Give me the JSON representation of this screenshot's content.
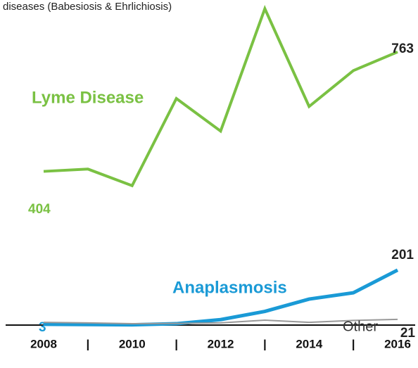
{
  "chart_data": {
    "type": "line",
    "subtitle": "diseases (Babesiosis & Ehrlichiosis)",
    "x": [
      2008,
      2009,
      2010,
      2011,
      2012,
      2013,
      2014,
      2015,
      2016
    ],
    "xlim": [
      2008,
      2016
    ],
    "xticks": [
      2008,
      {
        "value": 2009,
        "label": "|"
      },
      2010,
      {
        "value": 2011,
        "label": "|"
      },
      2012,
      {
        "value": 2013,
        "label": "|"
      },
      2014,
      {
        "value": 2015,
        "label": "|"
      },
      2016
    ],
    "ylim": [
      0,
      1162
    ],
    "y2lim": [
      -58,
      898
    ],
    "series": [
      {
        "name": "Lyme Disease",
        "color": "#7ac143",
        "axis": "y2",
        "values": [
          404,
          411,
          361,
          623,
          525,
          893,
          599,
          707,
          763
        ]
      },
      {
        "name": "Anaplasmosis",
        "color": "#1a9ad6",
        "values": [
          3,
          2,
          1,
          5,
          20,
          50,
          95,
          118,
          201
        ]
      },
      {
        "name": "Other",
        "color": "#999999",
        "values": [
          10,
          8,
          5,
          6,
          8,
          18,
          10,
          17,
          21
        ]
      }
    ]
  }
}
